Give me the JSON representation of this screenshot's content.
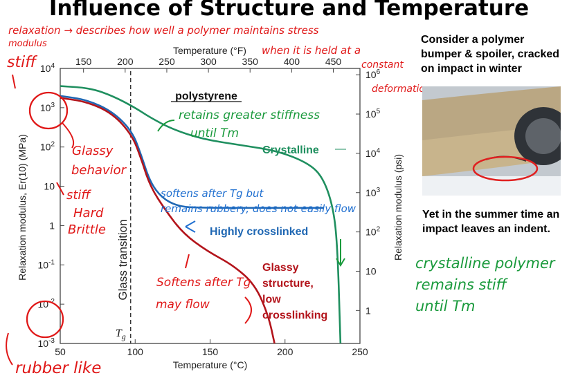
{
  "slide": {
    "title": "Influence of Structure and Temperature",
    "side_text_1": "Consider a polymer bumper & spoiler, cracked on impact in winter",
    "side_text_1_lines": [
      "Consider a polymer",
      "bumper & spoiler, cracked",
      "on impact in winter"
    ],
    "side_text_2_lines": [
      "Yet in the summer time an",
      "impact leaves an indent."
    ]
  },
  "chart_data": {
    "type": "line",
    "title": "polystyrene",
    "xlabel_bottom": "Temperature (°C)",
    "xlabel_top": "Temperature (°F)",
    "ylabel_left": "Relaxation modulus, Er(10) (MPa)",
    "ylabel_right": "Relaxation modulus (psi)",
    "xlim": [
      50,
      250
    ],
    "ylim_log10": [
      -3,
      4
    ],
    "x_ticks_bottom": [
      "50",
      "100",
      "150",
      "200",
      "250"
    ],
    "x_ticks_top": [
      "150",
      "200",
      "250",
      "300",
      "350",
      "400",
      "450"
    ],
    "y_ticks_left": [
      "10^4",
      "10^3",
      "10^2",
      "10",
      "1",
      "10^-1",
      "10^-2",
      "10^-3"
    ],
    "y_ticks_right": [
      "10^6",
      "10^5",
      "10^4",
      "10^3",
      "10^2",
      "10",
      "1"
    ],
    "glass_transition": {
      "x": 97,
      "label": "Glass transition",
      "symbol": "Tg"
    },
    "series": [
      {
        "name": "Crystalline",
        "color": "#1f8f5f",
        "points": [
          [
            50,
            3.55
          ],
          [
            70,
            3.5
          ],
          [
            85,
            3.3
          ],
          [
            100,
            3.0
          ],
          [
            110,
            2.75
          ],
          [
            125,
            2.45
          ],
          [
            145,
            2.2
          ],
          [
            170,
            2.05
          ],
          [
            195,
            1.9
          ],
          [
            215,
            1.6
          ],
          [
            225,
            1.25
          ],
          [
            232,
            0.5
          ],
          [
            235,
            -0.5
          ],
          [
            237,
            -3
          ]
        ]
      },
      {
        "name": "Highly crosslinked",
        "color": "#1f67b3",
        "points": [
          [
            50,
            3.3
          ],
          [
            68,
            3.2
          ],
          [
            85,
            2.9
          ],
          [
            98,
            2.4
          ],
          [
            104,
            1.8
          ],
          [
            110,
            1.1
          ],
          [
            118,
            0.7
          ],
          [
            128,
            0.5
          ],
          [
            140,
            0.45
          ],
          [
            226,
            0.45
          ]
        ]
      },
      {
        "name": "Glassy structure, low crosslinking",
        "color": "#b3141b",
        "points": [
          [
            50,
            3.25
          ],
          [
            68,
            3.15
          ],
          [
            85,
            2.85
          ],
          [
            98,
            2.3
          ],
          [
            104,
            1.7
          ],
          [
            110,
            1.0
          ],
          [
            120,
            0.4
          ],
          [
            132,
            -0.2
          ],
          [
            148,
            -0.65
          ],
          [
            165,
            -1.0
          ],
          [
            180,
            -1.5
          ],
          [
            189,
            -2.3
          ],
          [
            193,
            -3
          ]
        ]
      }
    ],
    "labels": {
      "crystalline": "Crystalline",
      "crosslinked": "Highly crosslinked",
      "glassy_lines": [
        "Glassy",
        "structure,",
        "low",
        "crosslinking"
      ]
    }
  },
  "annotations": {
    "red_top_lines": [
      "relaxation → describes how well a polymer maintains stress",
      "when it is held at a",
      "constant",
      "deformation"
    ],
    "modulus": "modulus",
    "stiff": "stiff",
    "glassy_lines": [
      "Glassy",
      "behavior"
    ],
    "stiff_hard_lines": [
      "stiff",
      "Hard",
      "Brittle"
    ],
    "rubber_like": "rubber like",
    "softens_may_flow_lines": [
      "Softens after Tg",
      "may flow"
    ],
    "green_plot": [
      "retains greater stiffness",
      "until Tm"
    ],
    "blue_plot": [
      "softens after Tg but",
      "remains rubbery, does not easily flow"
    ],
    "green_side": [
      "crystalline polymer",
      "remains stiff",
      "until Tm"
    ]
  }
}
